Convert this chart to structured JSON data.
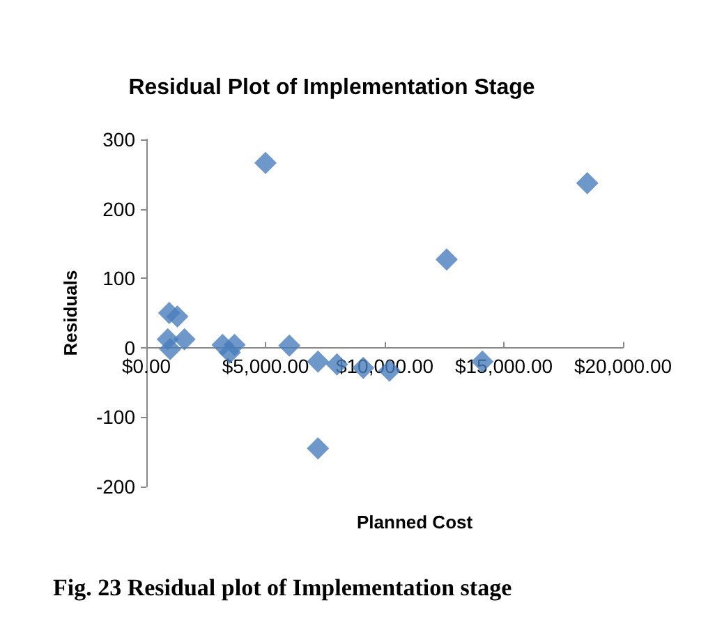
{
  "chart_data": {
    "type": "scatter",
    "title": "Residual Plot of Implementation Stage",
    "xlabel": "Planned Cost",
    "ylabel": "Residuals",
    "annotations": [
      "Fig. 23 Residual plot of Implementation stage"
    ],
    "x": [
      960,
      1300,
      900,
      1600,
      3200,
      3700,
      5000,
      6000,
      12600,
      18500,
      1000,
      3500,
      7200,
      8000,
      9100,
      10200,
      14100,
      7200
    ],
    "series": [
      {
        "color": "#4a7ebb",
        "values": [
          50,
          45,
          12,
          12,
          4,
          4,
          266,
          3,
          127,
          237,
          -2,
          -7,
          -20,
          -24,
          -29,
          -33,
          -20,
          -145
        ]
      }
    ],
    "xlim": [
      0,
      20000
    ],
    "xticks": [
      {
        "value": 0,
        "label": "$0.00"
      },
      {
        "value": 5000,
        "label": "$5,000.00"
      },
      {
        "value": 10000,
        "label": "$10,000.00"
      },
      {
        "value": 15000,
        "label": "$15,000.00"
      },
      {
        "value": 20000,
        "label": "$20,000.00"
      }
    ],
    "ylim": [
      -200,
      300
    ],
    "yticks": [
      -200,
      -100,
      0,
      100,
      200,
      300
    ],
    "marker": "diamond"
  }
}
